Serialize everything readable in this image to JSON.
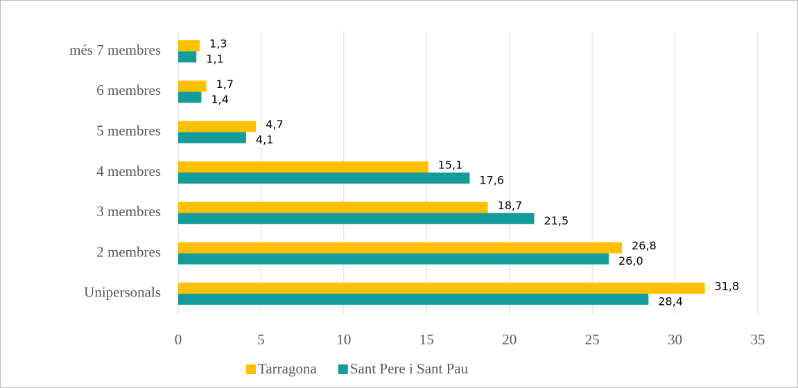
{
  "chart_data": {
    "type": "barh",
    "categories": [
      "Unipersonals",
      "2 membres",
      "3 membres",
      "4 membres",
      "5 membres",
      "6 membres",
      "més 7 membres"
    ],
    "series": [
      {
        "name": "Tarragona",
        "color": "#FFC000",
        "values": [
          31.8,
          26.8,
          18.7,
          15.1,
          4.7,
          1.7,
          1.3
        ],
        "value_labels": [
          "31,8",
          "26,8",
          "18,7",
          "15,1",
          "4,7",
          "1,7",
          "1,3"
        ]
      },
      {
        "name": "Sant Pere i Sant Pau",
        "color": "#169B9B",
        "values": [
          28.4,
          26.0,
          21.5,
          17.6,
          4.1,
          1.4,
          1.1
        ],
        "value_labels": [
          "28,4",
          "26,0",
          "21,5",
          "17,6",
          "4,1",
          "1,4",
          "1,1"
        ]
      }
    ],
    "xlim": [
      0,
      35
    ],
    "xticks": [
      0,
      5,
      10,
      15,
      20,
      25,
      30,
      35
    ],
    "grid": true,
    "legend": "bottom"
  }
}
